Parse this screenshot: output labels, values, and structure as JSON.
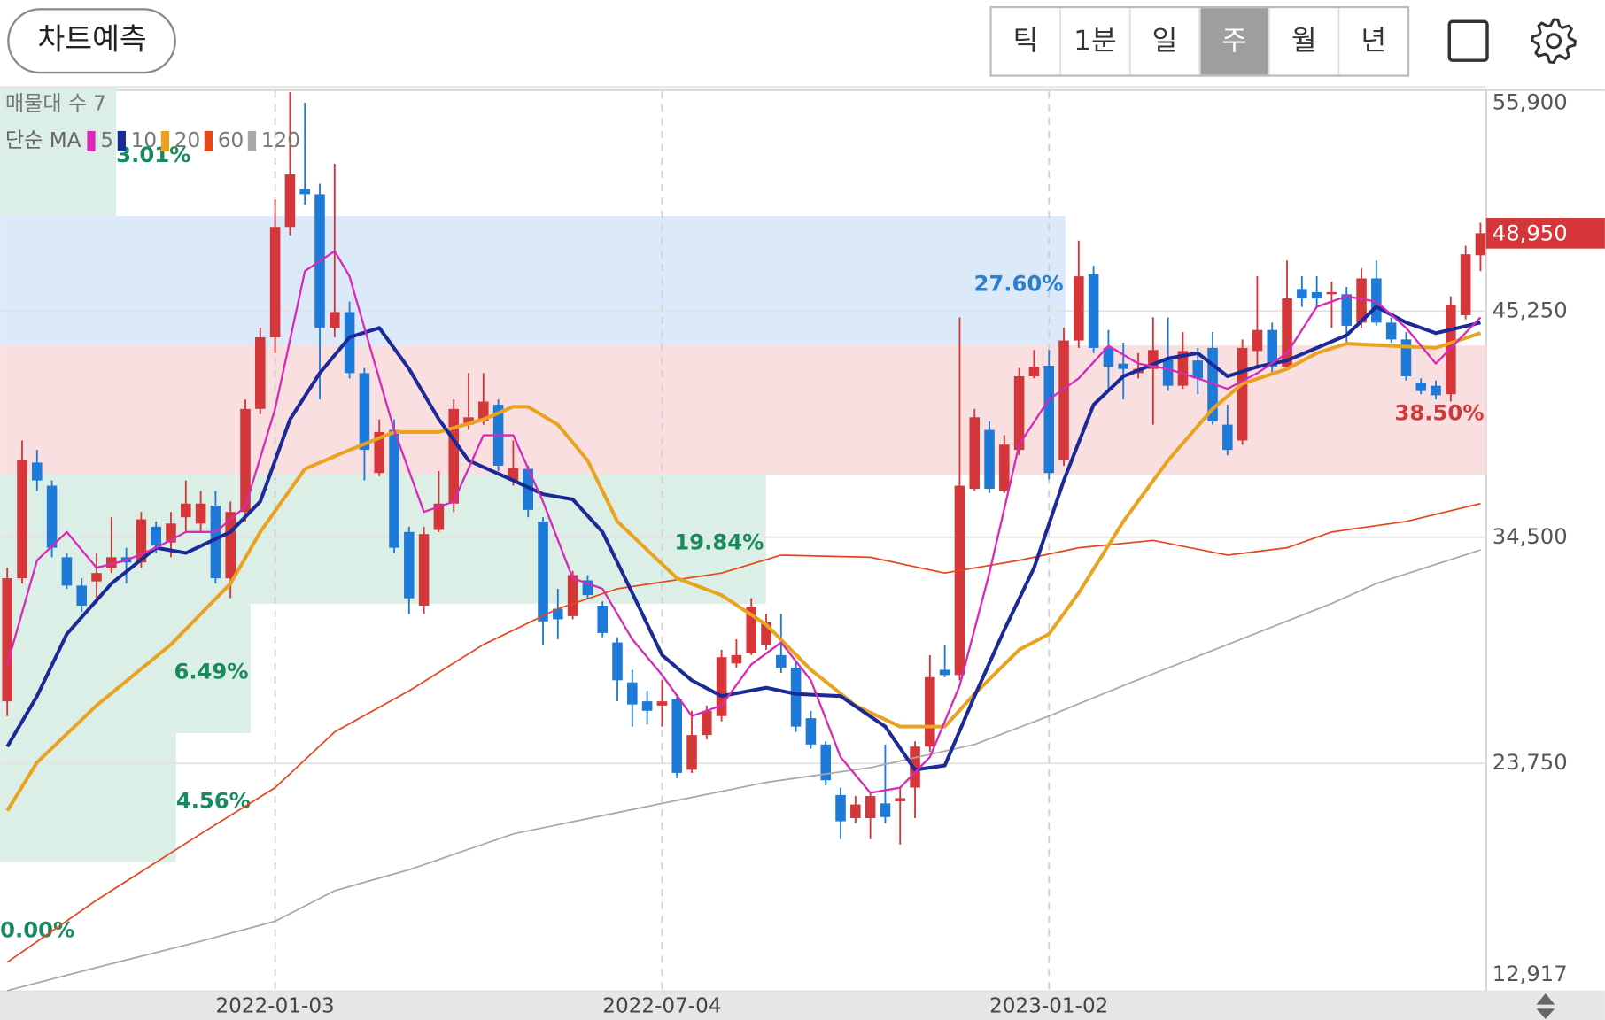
{
  "toolbar": {
    "button": "차트예측",
    "periods": [
      "틱",
      "1분",
      "일",
      "주",
      "월",
      "년"
    ],
    "selected": 3
  },
  "chart_data": {
    "type": "candlestick",
    "categories": [
      null,
      null,
      null,
      null,
      null,
      null,
      null,
      null,
      null,
      null,
      null,
      null,
      null,
      null,
      null,
      null,
      null,
      null,
      "2022-01-03",
      null,
      null,
      null,
      null,
      null,
      null,
      null,
      null,
      null,
      null,
      null,
      null,
      null,
      null,
      null,
      null,
      null,
      null,
      null,
      null,
      null,
      null,
      null,
      null,
      null,
      "2022-07-04",
      null,
      null,
      null,
      null,
      null,
      null,
      null,
      null,
      null,
      null,
      null,
      null,
      null,
      null,
      null,
      null,
      null,
      null,
      null,
      null,
      null,
      null,
      null,
      null,
      null,
      "2023-01-02",
      null,
      null,
      null,
      null,
      null,
      null,
      null,
      null,
      null,
      null,
      null,
      null,
      null,
      null,
      null,
      null,
      null,
      null,
      null,
      null,
      null,
      null,
      null,
      null,
      null,
      null,
      null,
      null,
      null
    ],
    "open": [
      26700,
      32550,
      38050,
      36950,
      33550,
      32200,
      32400,
      33050,
      33550,
      33300,
      35000,
      34250,
      35450,
      35150,
      36000,
      32550,
      35700,
      40600,
      44000,
      49250,
      51050,
      50800,
      44450,
      45200,
      42300,
      37550,
      39600,
      34750,
      31250,
      34850,
      36100,
      39850,
      40000,
      40800,
      37200,
      37750,
      35250,
      31100,
      30750,
      32450,
      31250,
      29500,
      27600,
      26700,
      26500,
      26800,
      23450,
      25100,
      26000,
      28500,
      29000,
      29400,
      28900,
      28300,
      25900,
      24650,
      22250,
      21150,
      21150,
      21850,
      21950,
      22600,
      24550,
      28200,
      27950,
      36800,
      39600,
      36700,
      38650,
      42150,
      42650,
      38150,
      43850,
      47000,
      43500,
      42750,
      42300,
      42500,
      43000,
      41700,
      42900,
      43500,
      39850,
      39100,
      43350,
      44350,
      42600,
      46300,
      46150,
      46050,
      46050,
      44700,
      46800,
      44700,
      43900,
      41850,
      41700,
      41300,
      45050,
      47900
    ],
    "high": [
      33050,
      39100,
      38650,
      37200,
      33750,
      32550,
      33750,
      35450,
      34000,
      35700,
      35250,
      35700,
      37200,
      36700,
      36700,
      36200,
      41050,
      44450,
      50550,
      55650,
      55150,
      51300,
      52250,
      45700,
      42550,
      40100,
      40100,
      35000,
      35000,
      37650,
      41050,
      42300,
      42300,
      41050,
      39100,
      37900,
      35450,
      32050,
      32900,
      32700,
      31450,
      29750,
      28200,
      27200,
      27700,
      27050,
      26250,
      26500,
      29150,
      29650,
      31600,
      30850,
      30850,
      28650,
      26250,
      24800,
      22600,
      22200,
      22350,
      24650,
      22600,
      24800,
      28900,
      29400,
      44950,
      40600,
      40000,
      39350,
      42550,
      43400,
      43400,
      44450,
      48600,
      47400,
      44350,
      43750,
      43250,
      44950,
      44950,
      44250,
      43500,
      44250,
      40800,
      43900,
      46900,
      44700,
      47650,
      46900,
      46900,
      46650,
      46400,
      47300,
      47650,
      44950,
      44250,
      42050,
      41950,
      45950,
      48350,
      49450
    ],
    "low": [
      26000,
      32300,
      36700,
      33550,
      32050,
      30950,
      31350,
      32800,
      32300,
      33050,
      33750,
      33550,
      34750,
      34750,
      32300,
      31600,
      35250,
      40350,
      43250,
      48850,
      50300,
      41050,
      44000,
      42050,
      37200,
      37400,
      33750,
      30850,
      30850,
      34750,
      35700,
      39600,
      39850,
      37650,
      36950,
      35450,
      29400,
      29650,
      30600,
      31600,
      29750,
      26700,
      25500,
      25600,
      25500,
      23050,
      23300,
      24900,
      25750,
      28300,
      28900,
      29150,
      28050,
      25250,
      24450,
      22700,
      20150,
      20900,
      20150,
      20900,
      19900,
      21150,
      24300,
      27850,
      27700,
      36700,
      36600,
      36600,
      38400,
      42050,
      37250,
      37900,
      43500,
      43250,
      41550,
      41050,
      42050,
      39850,
      41450,
      41550,
      41300,
      39850,
      38400,
      38900,
      42500,
      42300,
      42450,
      45450,
      45450,
      44450,
      43750,
      44450,
      44550,
      43750,
      41950,
      41300,
      41050,
      40950,
      44850,
      47150
    ],
    "close": [
      32550,
      38150,
      37200,
      34000,
      32200,
      31250,
      32800,
      33550,
      33300,
      35350,
      34100,
      35150,
      36100,
      36100,
      32550,
      35700,
      40600,
      44000,
      49250,
      51750,
      50800,
      44450,
      45200,
      42300,
      38650,
      39500,
      34000,
      31600,
      34650,
      36100,
      40600,
      40200,
      40950,
      37900,
      37800,
      35800,
      30500,
      30600,
      32700,
      31750,
      29950,
      27700,
      26550,
      26250,
      26700,
      23300,
      25100,
      26250,
      28800,
      28900,
      31200,
      30450,
      28300,
      25500,
      24650,
      22950,
      21000,
      21800,
      22200,
      21200,
      22100,
      24550,
      27850,
      27950,
      36950,
      40200,
      36800,
      38900,
      42150,
      42600,
      37550,
      43850,
      46900,
      43500,
      42600,
      42500,
      42500,
      43400,
      41700,
      43350,
      42050,
      40000,
      38650,
      43500,
      44350,
      42600,
      45850,
      45850,
      45850,
      46150,
      44550,
      46800,
      44700,
      43900,
      42150,
      41450,
      41250,
      45550,
      47950,
      48950
    ],
    "up_color": "#d4363a",
    "down_color": "#1e7ad8",
    "ylim": [
      12917,
      55900
    ],
    "yticks": [
      {
        "value": 12917,
        "label": "12,917"
      },
      {
        "value": 23750,
        "label": "23,750"
      },
      {
        "value": 34500,
        "label": "34,500"
      },
      {
        "value": 45250,
        "label": "45,250"
      },
      {
        "value": 55900,
        "label": "55,900"
      }
    ],
    "grid": true,
    "last_price": {
      "value": 48950,
      "label": "48,950"
    },
    "ma_legend": "단순 MA",
    "series": [
      {
        "name": "5",
        "color": "#d62ab8",
        "width": 2,
        "x": [
          0,
          2,
          4,
          6,
          8,
          10,
          12,
          14,
          16,
          18,
          20,
          22,
          23,
          24,
          26,
          28,
          30,
          32,
          34,
          36,
          38,
          40,
          42,
          44,
          46,
          48,
          50,
          52,
          54,
          56,
          58,
          60,
          62,
          64,
          66,
          68,
          70,
          72,
          74,
          76,
          78,
          80,
          82,
          84,
          86,
          88,
          90,
          92,
          94,
          96,
          99
        ],
        "values": [
          28450,
          33400,
          34750,
          33050,
          33400,
          34000,
          34750,
          34750,
          35950,
          40600,
          47150,
          48100,
          46900,
          44450,
          39600,
          35700,
          36200,
          39350,
          39350,
          36200,
          32550,
          32050,
          29650,
          27950,
          26000,
          26500,
          28450,
          29500,
          27700,
          24050,
          22350,
          22600,
          24050,
          27450,
          32800,
          38900,
          41050,
          42050,
          43600,
          42750,
          42500,
          42050,
          41550,
          42300,
          43250,
          45450,
          45950,
          45700,
          44450,
          42750,
          44950
        ]
      },
      {
        "name": "10",
        "color": "#1b2a96",
        "width": 3.5,
        "x": [
          0,
          2,
          4,
          7,
          10,
          12,
          15,
          17,
          19,
          21,
          23,
          25,
          27,
          29,
          31,
          34,
          36,
          38,
          40,
          42,
          44,
          46,
          48,
          51,
          53,
          56,
          59,
          61,
          63,
          65,
          67,
          69,
          71,
          73,
          75,
          78,
          80,
          82,
          84,
          86,
          88,
          90,
          92,
          94,
          96,
          99
        ],
        "values": [
          24550,
          26950,
          29900,
          32300,
          34000,
          33750,
          34750,
          36200,
          40100,
          42300,
          44000,
          44450,
          42500,
          40100,
          38150,
          37200,
          36550,
          36300,
          34750,
          31850,
          28900,
          27700,
          26950,
          27350,
          27050,
          26950,
          25500,
          23450,
          23650,
          26950,
          30100,
          33050,
          37200,
          40800,
          42150,
          43000,
          43250,
          42150,
          42600,
          42900,
          43500,
          44100,
          45450,
          44700,
          44200,
          44700
        ]
      },
      {
        "name": "20",
        "color": "#e9a321",
        "width": 3.5,
        "x": [
          0,
          2,
          6,
          11,
          15,
          17,
          20,
          23,
          26,
          29,
          32,
          34,
          35,
          37,
          39,
          41,
          45,
          48,
          51,
          54,
          57,
          60,
          63,
          65,
          68,
          70,
          72,
          75,
          78,
          81,
          83,
          86,
          88,
          90,
          93,
          96,
          99
        ],
        "values": [
          21500,
          23800,
          26500,
          29400,
          32300,
          34750,
          37750,
          38650,
          39500,
          39500,
          40100,
          40700,
          40700,
          39850,
          38150,
          35250,
          32550,
          31750,
          30350,
          28200,
          26500,
          25500,
          25500,
          27050,
          29150,
          29900,
          31850,
          35250,
          38150,
          40600,
          41800,
          42500,
          43250,
          43700,
          43600,
          43500,
          44200
        ]
      },
      {
        "name": "60",
        "color": "#e5461b",
        "width": 1.5,
        "x": [
          0,
          6,
          13,
          18,
          22,
          27,
          32,
          37,
          41,
          48,
          52,
          58,
          63,
          68,
          72,
          77,
          82,
          86,
          89,
          94,
          99
        ],
        "values": [
          14300,
          17250,
          20400,
          22600,
          25250,
          27200,
          29400,
          31100,
          32050,
          32800,
          33650,
          33550,
          32800,
          33400,
          34000,
          34350,
          33650,
          34000,
          34750,
          35250,
          36100
        ]
      },
      {
        "name": "120",
        "color": "#a8a8a8",
        "width": 1.5,
        "x": [
          0,
          6,
          13,
          18,
          22,
          27,
          34,
          44,
          51,
          58,
          65,
          70,
          75,
          82,
          89,
          92,
          99
        ],
        "values": [
          12950,
          14050,
          15300,
          16250,
          17700,
          18700,
          20400,
          21850,
          22850,
          23550,
          24650,
          26000,
          27450,
          29400,
          31350,
          32300,
          33900
        ]
      }
    ],
    "volume_profile": {
      "label": "매물대 수",
      "count": 7,
      "values": [
        0,
        4.56,
        6.49,
        19.84,
        38.5,
        27.6,
        3.01
      ],
      "value_labels": [
        "0.00%",
        "4.56%",
        "6.49%",
        "19.84%",
        "38.50%",
        "27.60%",
        "3.01%"
      ],
      "colors": [
        "#dcefe6",
        "#dcefe6",
        "#dcefe6",
        "#dcefe6",
        "#f9dfe0",
        "#dbe9f8",
        "#dcefe6"
      ],
      "label_colors": [
        "#178a5e",
        "#178a5e",
        "#178a5e",
        "#178a5e",
        "#d03a3a",
        "#2a7fd0",
        "#178a5e"
      ]
    }
  }
}
